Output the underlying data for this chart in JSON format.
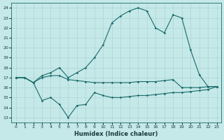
{
  "xlabel": "Humidex (Indice chaleur)",
  "bg_color": "#c5e8e8",
  "grid_color": "#add4d4",
  "line_color": "#1a6b6b",
  "xlim": [
    -0.5,
    23.5
  ],
  "ylim": [
    12.5,
    24.5
  ],
  "yticks": [
    13,
    14,
    15,
    16,
    17,
    18,
    19,
    20,
    21,
    22,
    23,
    24
  ],
  "xticks": [
    0,
    1,
    2,
    3,
    4,
    5,
    6,
    7,
    8,
    9,
    10,
    11,
    12,
    13,
    14,
    15,
    16,
    17,
    18,
    19,
    20,
    21,
    22,
    23
  ],
  "line1_x": [
    0,
    1,
    2,
    3,
    4,
    5,
    6,
    7,
    8,
    9,
    10,
    11,
    12,
    13,
    14,
    15,
    16,
    17,
    18,
    19,
    20,
    21,
    22,
    23
  ],
  "line1_y": [
    17.0,
    17.0,
    16.5,
    17.2,
    17.5,
    18.0,
    17.0,
    17.5,
    18.0,
    19.0,
    20.3,
    22.5,
    23.2,
    23.7,
    24.0,
    23.7,
    22.0,
    21.5,
    23.3,
    23.0,
    19.8,
    17.3,
    16.1,
    16.1
  ],
  "line2_x": [
    0,
    1,
    2,
    3,
    4,
    5,
    6,
    7,
    8,
    9,
    10,
    11,
    12,
    13,
    14,
    15,
    16,
    17,
    18,
    19,
    20,
    21,
    22,
    23
  ],
  "line2_y": [
    17.0,
    17.0,
    16.5,
    17.0,
    17.2,
    17.2,
    16.8,
    16.7,
    16.6,
    16.5,
    16.5,
    16.5,
    16.5,
    16.5,
    16.6,
    16.6,
    16.6,
    16.7,
    16.8,
    16.0,
    16.0,
    16.0,
    16.1,
    16.1
  ],
  "line3_x": [
    0,
    1,
    2,
    3,
    4,
    5,
    6,
    7,
    8,
    9,
    10,
    11,
    12,
    13,
    14,
    15,
    16,
    17,
    18,
    19,
    20,
    21,
    22,
    23
  ],
  "line3_y": [
    17.0,
    17.0,
    16.5,
    14.7,
    15.0,
    14.3,
    13.0,
    14.2,
    14.3,
    15.5,
    15.2,
    15.0,
    15.0,
    15.1,
    15.2,
    15.2,
    15.3,
    15.4,
    15.5,
    15.5,
    15.6,
    15.7,
    15.8,
    16.1
  ]
}
